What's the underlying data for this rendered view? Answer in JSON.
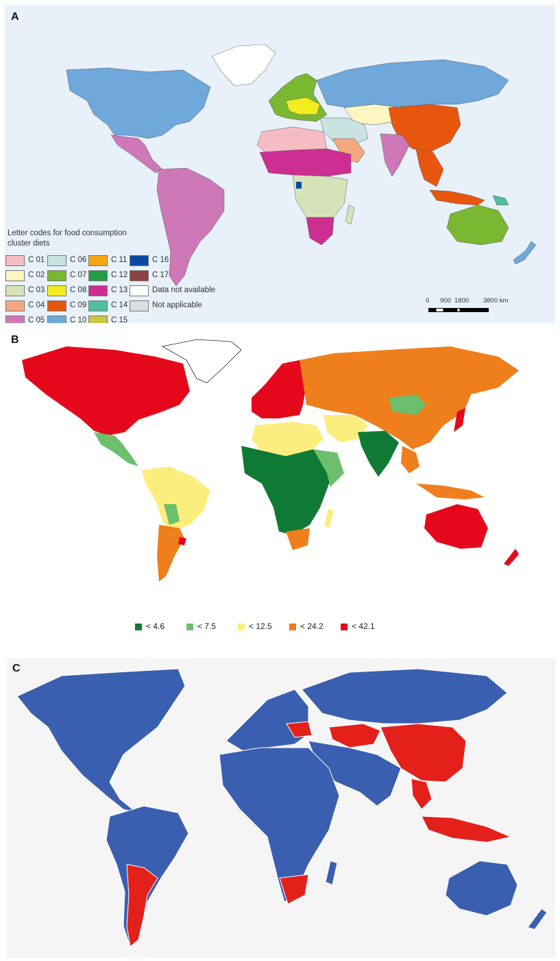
{
  "panels": {
    "a": {
      "letter": "A",
      "legend_title": "Letter codes for food consumption cluster diets",
      "legend": [
        {
          "label": "C 01",
          "color": "#f6bcc3"
        },
        {
          "label": "C 02",
          "color": "#fdf6c0"
        },
        {
          "label": "C 03",
          "color": "#d6e3b8"
        },
        {
          "label": "C 04",
          "color": "#f3a880"
        },
        {
          "label": "C 05",
          "color": "#cf78b7"
        },
        {
          "label": "C 06",
          "color": "#c8e3e1"
        },
        {
          "label": "C 07",
          "color": "#7ab831"
        },
        {
          "label": "C 08",
          "color": "#f3ec1f"
        },
        {
          "label": "C 09",
          "color": "#e8560e"
        },
        {
          "label": "C 10",
          "color": "#6fa8db"
        },
        {
          "label": "C 11",
          "color": "#f3a512"
        },
        {
          "label": "C 12",
          "color": "#1f9e44"
        },
        {
          "label": "C 13",
          "color": "#cd2e91"
        },
        {
          "label": "C 14",
          "color": "#51bf9a"
        },
        {
          "label": "C 15",
          "color": "#c8c847"
        },
        {
          "label": "C 16",
          "color": "#0b4aa0"
        },
        {
          "label": "C 17",
          "color": "#8e4141"
        },
        {
          "label": "Data not available",
          "color": "#ffffff"
        },
        {
          "label": "Not applicable",
          "color": "#dbdfe0"
        }
      ],
      "scale": {
        "ticks": [
          "0",
          "900",
          "1800",
          "3800 km"
        ]
      }
    },
    "b": {
      "letter": "B",
      "legend": [
        {
          "label": "< 4.6",
          "color": "#0f7a35"
        },
        {
          "label": "< 7.5",
          "color": "#6cbf6c"
        },
        {
          "label": "< 12.5",
          "color": "#fbee7f"
        },
        {
          "label": "< 24.2",
          "color": "#ef7e1d"
        },
        {
          "label": "< 42.1",
          "color": "#e5081b"
        }
      ]
    },
    "c": {
      "letter": "C",
      "colors": {
        "blue": "#3b5fb0",
        "red": "#e4201b"
      }
    }
  }
}
